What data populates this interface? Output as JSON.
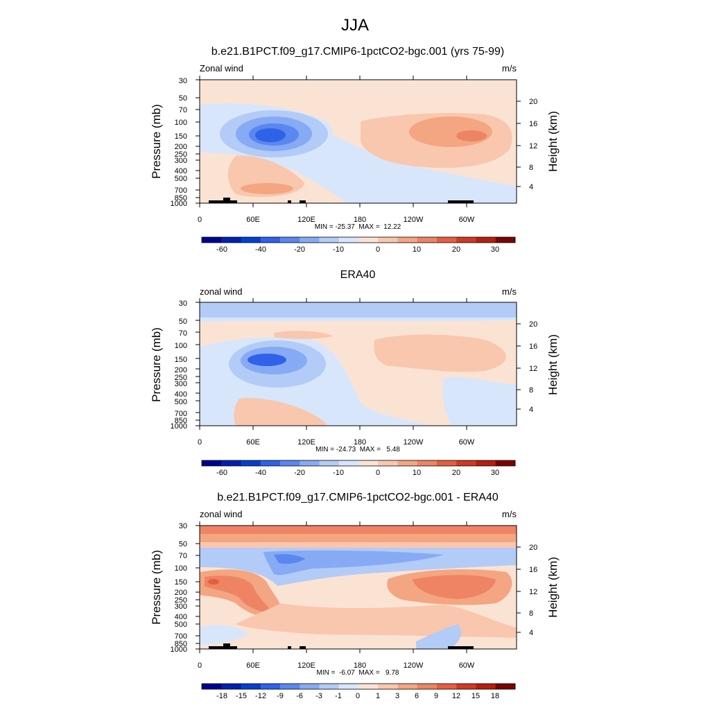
{
  "title": "JJA",
  "colors": {
    "field_palette": [
      "#000090",
      "#0020b0",
      "#0040d0",
      "#2f62e8",
      "#5a87f0",
      "#87aaf4",
      "#b3cbf7",
      "#d8e6fb",
      "#fbe3d4",
      "#f9c7ae",
      "#f4a582",
      "#ee8463",
      "#e55f3f",
      "#d03a22",
      "#b5200e",
      "#7a0403"
    ],
    "diff_palette": [
      "#000090",
      "#0020b0",
      "#0040d0",
      "#2f62e8",
      "#5a87f0",
      "#87aaf4",
      "#b3cbf7",
      "#d8e6fb",
      "#fbe3d4",
      "#f9c7ae",
      "#f4a582",
      "#ee8463",
      "#e55f3f",
      "#d03a22",
      "#b5200e",
      "#7a0403"
    ]
  },
  "chart_data": [
    {
      "type": "heatmap",
      "panel_title": "b.e21.B1PCT.f09_g17.CMIP6-1pctCO2-bgc.001 (yrs 75-99)",
      "left_label": "Zonal wind",
      "units": "m/s",
      "ylabel": "Pressure (mb)",
      "y2label": "Height (km)",
      "x_ticks": [
        "0",
        "60E",
        "120E",
        "180",
        "120W",
        "60W"
      ],
      "y_ticks": [
        "30",
        "50",
        "70",
        "100",
        "150",
        "200",
        "250",
        "300",
        "400",
        "500",
        "700",
        "850",
        "1000"
      ],
      "y2_ticks": [
        "20",
        "16",
        "12",
        "8",
        "4"
      ],
      "xlim": [
        0,
        355
      ],
      "ylim_mb": [
        1000,
        30
      ],
      "stats": "MIN = -25.37  MAX =  12.22",
      "min": -25.37,
      "max": 12.22,
      "colorbar_labels": [
        "-60",
        "-40",
        "-20",
        "-10",
        "0",
        "10",
        "20",
        "30"
      ],
      "features": [
        {
          "kind": "jet_core",
          "lon": 80,
          "p_mb": 150,
          "value": -25
        },
        {
          "kind": "jet_core",
          "lon": 305,
          "p_mb": 150,
          "value": 12
        }
      ]
    },
    {
      "type": "heatmap",
      "panel_title": "ERA40",
      "left_label": "zonal wind",
      "units": "m/s",
      "ylabel": "Pressure (mb)",
      "y2label": "Height (km)",
      "x_ticks": [
        "0",
        "60E",
        "120E",
        "180",
        "120W",
        "60W"
      ],
      "y_ticks": [
        "30",
        "50",
        "70",
        "100",
        "150",
        "200",
        "250",
        "300",
        "400",
        "500",
        "700",
        "850",
        "1000"
      ],
      "y2_ticks": [
        "20",
        "16",
        "12",
        "8",
        "4"
      ],
      "xlim": [
        0,
        355
      ],
      "ylim_mb": [
        1000,
        30
      ],
      "stats": "MIN = -24.73  MAX =   5.48",
      "min": -24.73,
      "max": 5.48,
      "colorbar_labels": [
        "-60",
        "-40",
        "-20",
        "-10",
        "0",
        "10",
        "20",
        "30"
      ],
      "features": [
        {
          "kind": "jet_core",
          "lon": 80,
          "p_mb": 150,
          "value": -24
        },
        {
          "kind": "jet_core",
          "lon": 230,
          "p_mb": 120,
          "value": 5
        }
      ]
    },
    {
      "type": "heatmap",
      "panel_title": "b.e21.B1PCT.f09_g17.CMIP6-1pctCO2-bgc.001 - ERA40",
      "left_label": "zonal wind",
      "units": "m/s",
      "ylabel": "Pressure (mb)",
      "y2label": "Height (km)",
      "x_ticks": [
        "0",
        "60E",
        "120E",
        "180",
        "120W",
        "60W"
      ],
      "y_ticks": [
        "30",
        "50",
        "70",
        "100",
        "150",
        "200",
        "250",
        "300",
        "400",
        "500",
        "700",
        "850",
        "1000"
      ],
      "y2_ticks": [
        "20",
        "16",
        "12",
        "8",
        "4"
      ],
      "xlim": [
        0,
        355
      ],
      "ylim_mb": [
        1000,
        30
      ],
      "stats": "MIN =  -6.07  MAX =   9.78",
      "min": -6.07,
      "max": 9.78,
      "colorbar_labels": [
        "-18",
        "-15",
        "-12",
        "-9",
        "-6",
        "-3",
        "-1",
        "0",
        "1",
        "3",
        "6",
        "9",
        "12",
        "15",
        "18"
      ],
      "features": [
        {
          "kind": "max",
          "lon": 20,
          "p_mb": 150,
          "value": 9
        },
        {
          "kind": "min",
          "lon": 100,
          "p_mb": 100,
          "value": -6
        }
      ]
    }
  ]
}
